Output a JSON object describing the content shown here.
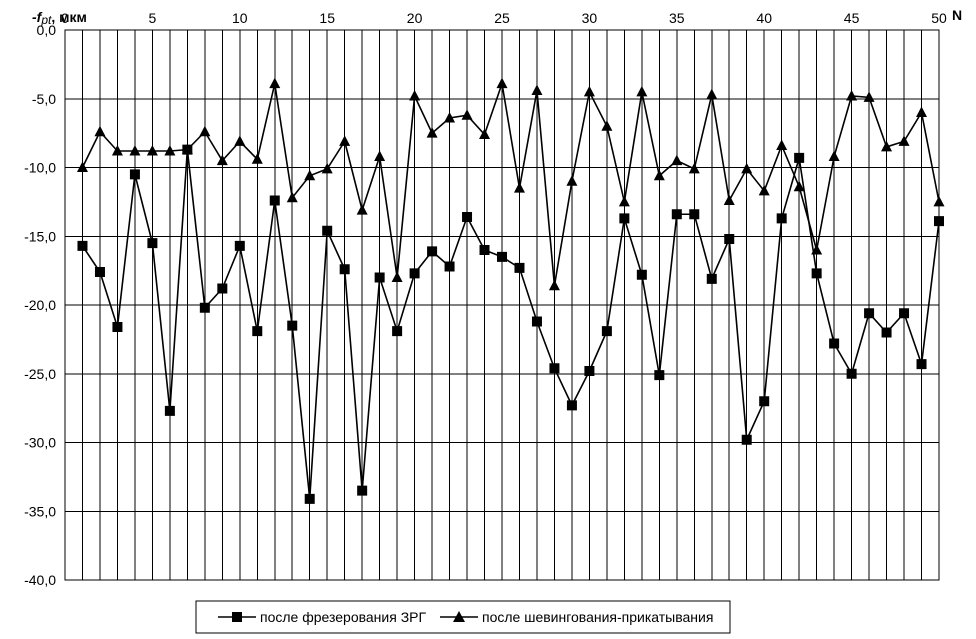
{
  "chart_data": {
    "type": "line",
    "ylabel": {
      "prefix": "-f",
      "sub": "pt",
      "suffix": ", мкм"
    },
    "xlabel": "N",
    "xlim": [
      0,
      50
    ],
    "ylim": [
      -40,
      0
    ],
    "x_ticks": [
      0,
      5,
      10,
      15,
      20,
      25,
      30,
      35,
      40,
      45,
      50
    ],
    "y_ticks": [
      "0,0",
      "-5,0",
      "-10,0",
      "-15,0",
      "-20,0",
      "-25,0",
      "-30,0",
      "-35,0",
      "-40,0"
    ],
    "grid": {
      "x_every": 1,
      "y_every": 5
    },
    "legend_position": "bottom-center",
    "x": [
      1,
      2,
      3,
      4,
      5,
      6,
      7,
      8,
      9,
      10,
      11,
      12,
      13,
      14,
      15,
      16,
      17,
      18,
      19,
      20,
      21,
      22,
      23,
      24,
      25,
      26,
      27,
      28,
      29,
      30,
      31,
      32,
      33,
      34,
      35,
      36,
      37,
      38,
      39,
      40,
      41,
      42,
      43,
      44,
      45,
      46,
      47,
      48,
      49,
      50
    ],
    "series": [
      {
        "name": "после фрезерования ЗРГ",
        "marker": "square",
        "color": "#000000",
        "values": [
          -15.7,
          -17.6,
          -21.6,
          -10.5,
          -15.5,
          -27.7,
          -8.7,
          -20.2,
          -18.8,
          -15.7,
          -21.9,
          -12.4,
          -21.5,
          -34.1,
          -14.6,
          -17.4,
          -33.5,
          -18.0,
          -21.9,
          -17.7,
          -16.1,
          -17.2,
          -13.6,
          -16.0,
          -16.5,
          -17.3,
          -21.2,
          -24.6,
          -27.3,
          -24.8,
          -21.9,
          -13.7,
          -17.8,
          -25.1,
          -13.4,
          -13.4,
          -18.1,
          -15.2,
          -29.8,
          -27.0,
          -13.7,
          -9.3,
          -17.7,
          -22.8,
          -25.0,
          -20.6,
          -22.0,
          -20.6,
          -24.3,
          -13.9
        ]
      },
      {
        "name": "после шевингования-прикатывания",
        "marker": "triangle",
        "color": "#000000",
        "values": [
          -10.0,
          -7.4,
          -8.8,
          -8.8,
          -8.8,
          -8.8,
          -8.7,
          -7.4,
          -9.5,
          -8.1,
          -9.4,
          -3.9,
          -12.2,
          -10.6,
          -10.1,
          -8.1,
          -13.1,
          -9.2,
          -18.0,
          -4.8,
          -7.5,
          -6.4,
          -6.2,
          -7.6,
          -3.9,
          -11.5,
          -4.4,
          -18.6,
          -11.0,
          -4.5,
          -7.0,
          -12.5,
          -4.5,
          -10.6,
          -9.5,
          -10.1,
          -4.7,
          -12.4,
          -10.1,
          -11.7,
          -8.4,
          -11.4,
          -16.0,
          -9.2,
          -4.8,
          -4.9,
          -8.5,
          -8.1,
          -6.0,
          -12.5
        ]
      }
    ]
  }
}
